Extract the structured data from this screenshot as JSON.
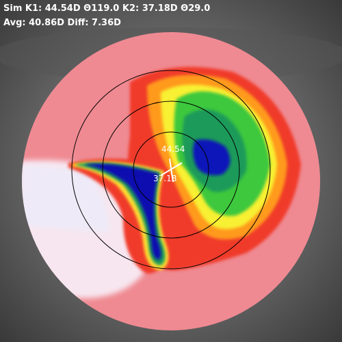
{
  "header": {
    "line1": "Sim K1: 44.54D Θ119.0 K2: 37.18D Θ29.0",
    "line2": "Avg: 40.86D Diff: 7.36D"
  },
  "map": {
    "k1_label": "44.54",
    "k2_label": "37.18"
  }
}
